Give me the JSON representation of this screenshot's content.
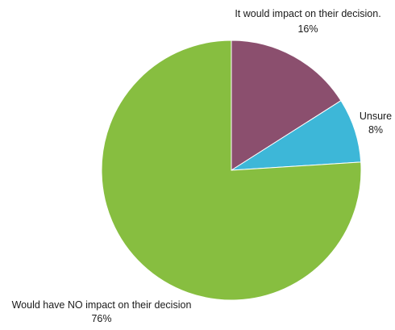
{
  "chart_data": {
    "type": "pie",
    "title": "",
    "slices": [
      {
        "label": "It would impact on their decision.",
        "value": 16,
        "display": "16%",
        "color": "#8b4f6e"
      },
      {
        "label": "Unsure",
        "value": 8,
        "display": "8%",
        "color": "#3db7d8"
      },
      {
        "label": "Would have NO impact on their decision",
        "value": 76,
        "display": "76%",
        "color": "#87be40"
      }
    ],
    "start": "top",
    "direction": "clockwise",
    "legend": "none"
  }
}
